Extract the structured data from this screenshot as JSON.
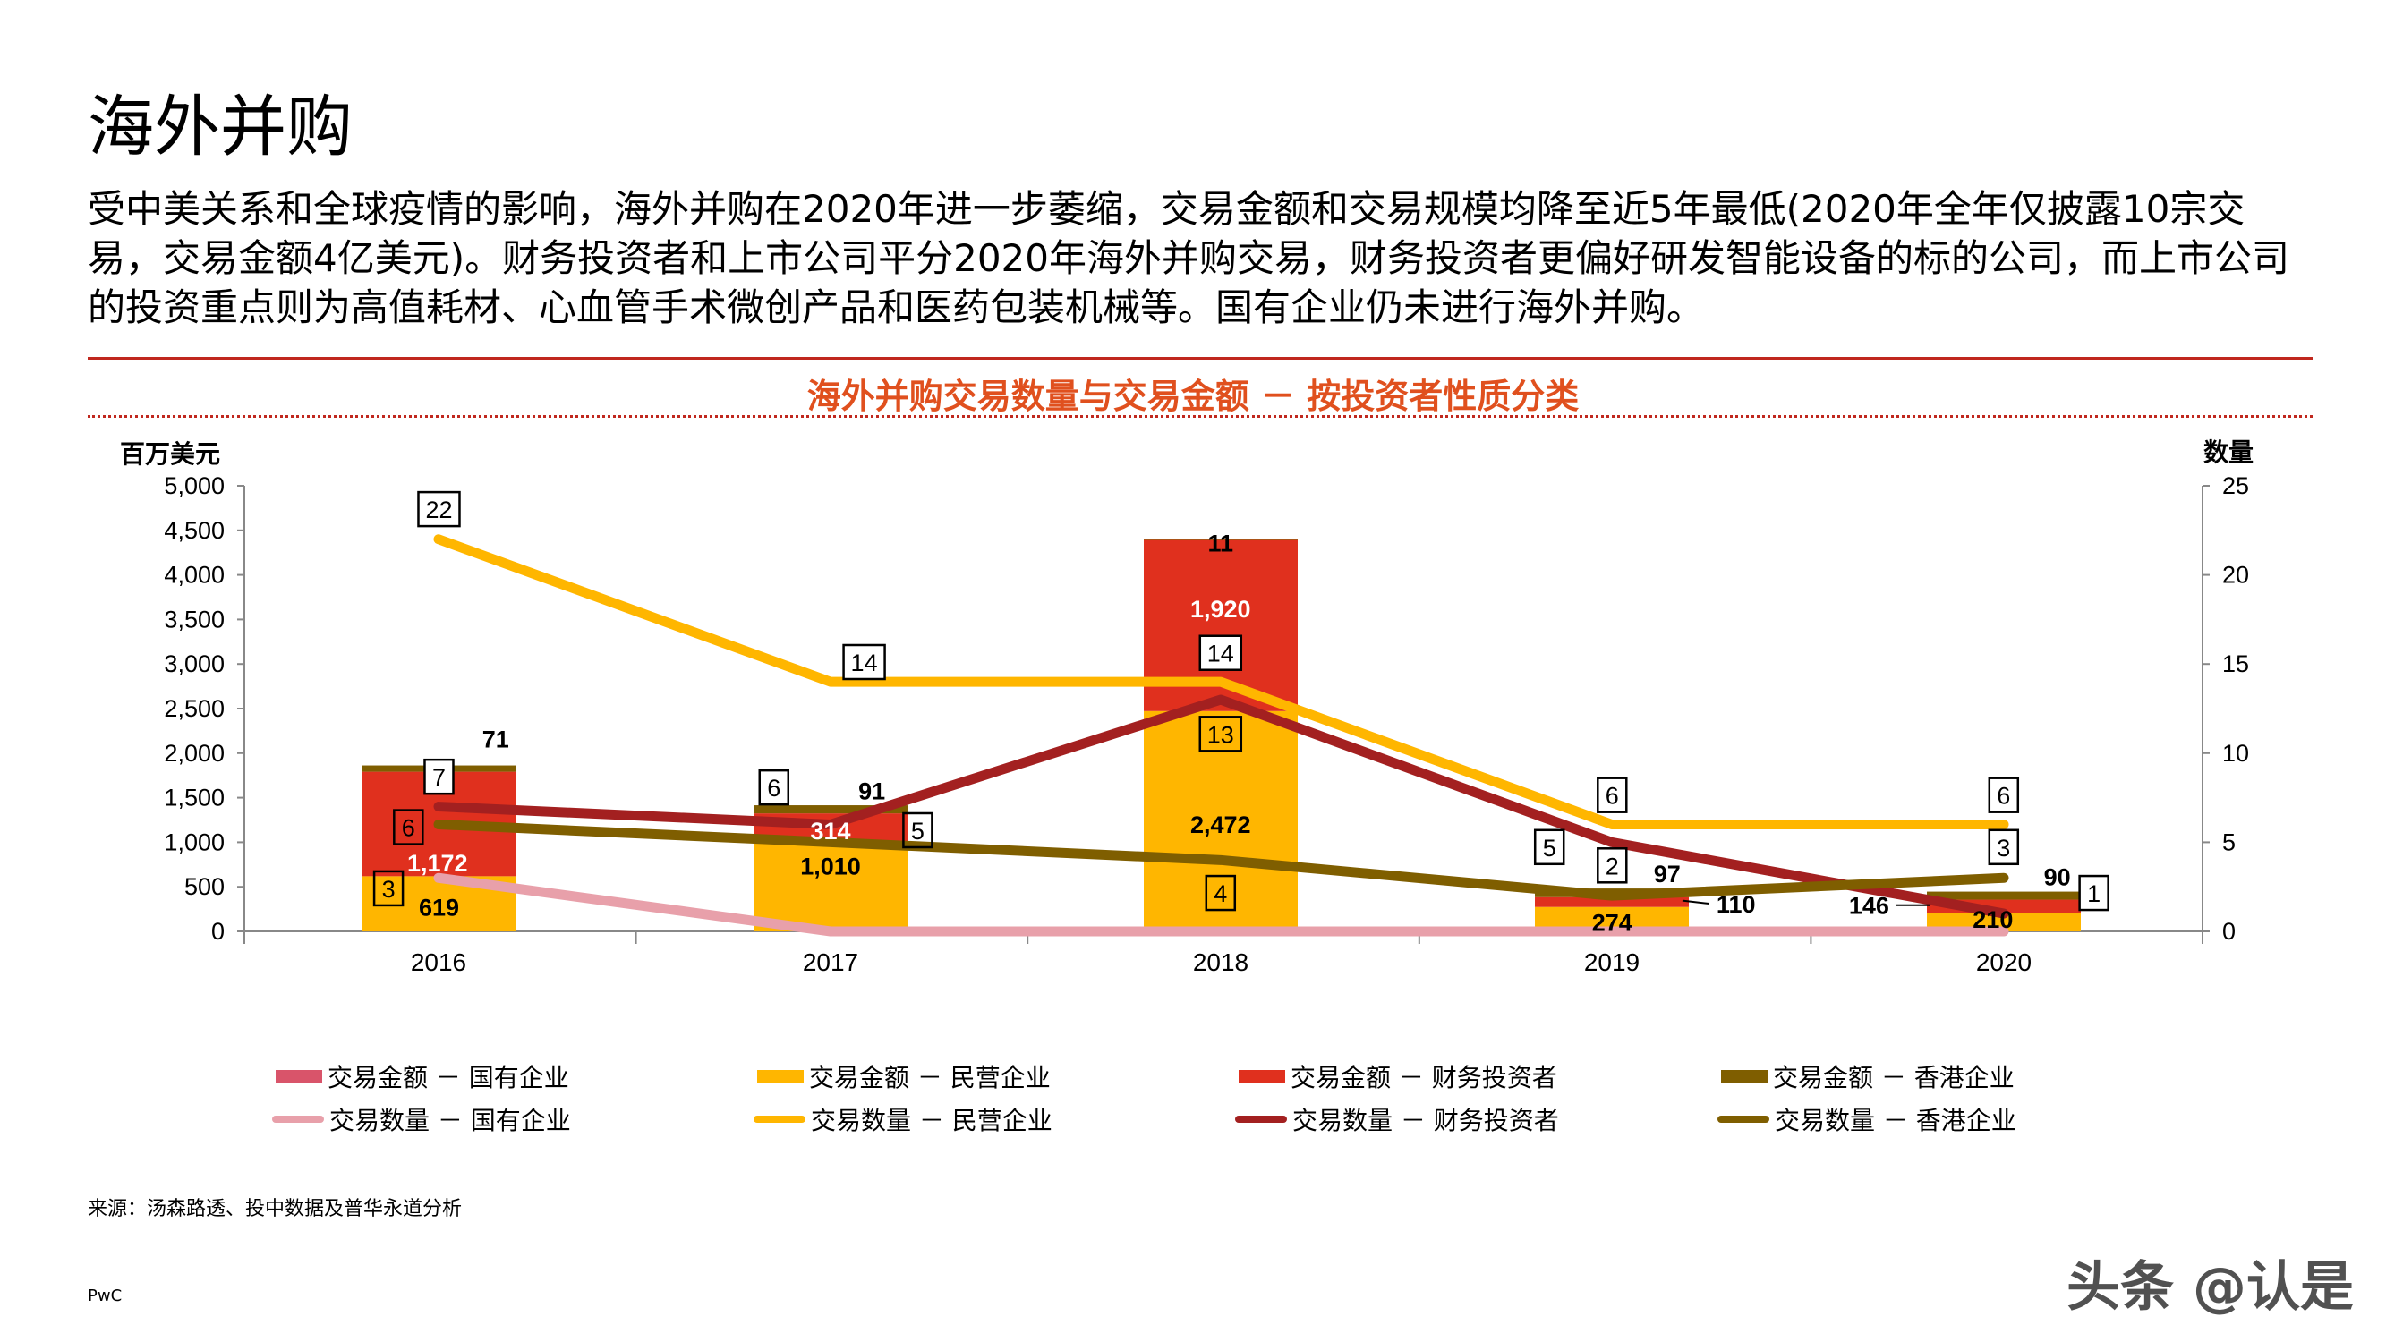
{
  "page": {
    "title": "海外并购",
    "intro": "受中美关系和全球疫情的影响，海外并购在2020年进一步萎缩，交易金额和交易规模均降至近5年最低(2020年全年仅披露10宗交易，交易金额4亿美元)。财务投资者和上市公司平分2020年海外并购交易，财务投资者更偏好研发智能设备的标的公司，而上市公司的投资重点则为高值耗材、心血管手术微创产品和医药包装机械等。国有企业仍未进行海外并购。",
    "source": "来源：汤森路透、投中数据及普华永道分析",
    "footer": "PwC",
    "watermark": "头条 @认是"
  },
  "colors": {
    "accent_rule": "#c0281e",
    "chart_title": "#e0501e",
    "soe_amount": "#d9546a",
    "soe_count": "#e8a0aa",
    "private_amount": "#ffb600",
    "private_count": "#ffb600",
    "fin_amount": "#e0301e",
    "fin_count": "#a32020",
    "hk_amount": "#7f5e00",
    "hk_count": "#7f5e00"
  },
  "chart_data": {
    "type": "bar+line",
    "title": "海外并购交易数量与交易金额 － 按投资者性质分类",
    "ylabel_left": "百万美元",
    "ylabel_right": "数量",
    "categories": [
      "2016",
      "2017",
      "2018",
      "2019",
      "2020"
    ],
    "ylim_left": [
      0,
      5000
    ],
    "yticks_left": [
      "0",
      "500",
      "1,000",
      "1,500",
      "2,000",
      "2,500",
      "3,000",
      "3,500",
      "4,000",
      "4,500",
      "5,000"
    ],
    "ylim_right": [
      0,
      25
    ],
    "yticks_right": [
      "0",
      "5",
      "10",
      "15",
      "20",
      "25"
    ],
    "grid": false,
    "legend_position": "bottom",
    "bar_series": [
      {
        "name": "交易金额 － 国有企业",
        "color_key": "soe_amount",
        "values": [
          0,
          0,
          0,
          0,
          0
        ],
        "labels": [
          "",
          "",
          "",
          "",
          ""
        ]
      },
      {
        "name": "交易金额 － 民营企业",
        "color_key": "private_amount",
        "values": [
          619,
          1010,
          2472,
          274,
          210
        ],
        "labels": [
          "619",
          "1,010",
          "2,472",
          "274",
          "210"
        ]
      },
      {
        "name": "交易金额 － 财务投资者",
        "color_key": "fin_amount",
        "values": [
          1172,
          314,
          1920,
          110,
          146
        ],
        "labels": [
          "1,172",
          "314",
          "1,920",
          "110",
          "146"
        ]
      },
      {
        "name": "交易金额 － 香港企业",
        "color_key": "hk_amount",
        "values": [
          71,
          91,
          11,
          97,
          90
        ],
        "labels": [
          "71",
          "91",
          "11",
          "97",
          "90"
        ]
      }
    ],
    "line_series": [
      {
        "name": "交易数量 － 国有企业",
        "color_key": "soe_count",
        "values": [
          3,
          0,
          0,
          0,
          0
        ],
        "labels": [
          "3",
          "",
          "",
          "",
          ""
        ]
      },
      {
        "name": "交易数量 － 民营企业",
        "color_key": "private_count",
        "values": [
          22,
          14,
          14,
          6,
          6
        ],
        "labels": [
          "22",
          "14",
          "14",
          "6",
          "6"
        ]
      },
      {
        "name": "交易数量 － 财务投资者",
        "color_key": "fin_count",
        "values": [
          7,
          6,
          13,
          5,
          1
        ],
        "labels": [
          "7",
          "6",
          "13",
          "5",
          "1"
        ]
      },
      {
        "name": "交易数量 － 香港企业",
        "color_key": "hk_count",
        "values": [
          6,
          5,
          4,
          2,
          3
        ],
        "labels": [
          "6",
          "5",
          "4",
          "2",
          "3"
        ]
      }
    ]
  }
}
